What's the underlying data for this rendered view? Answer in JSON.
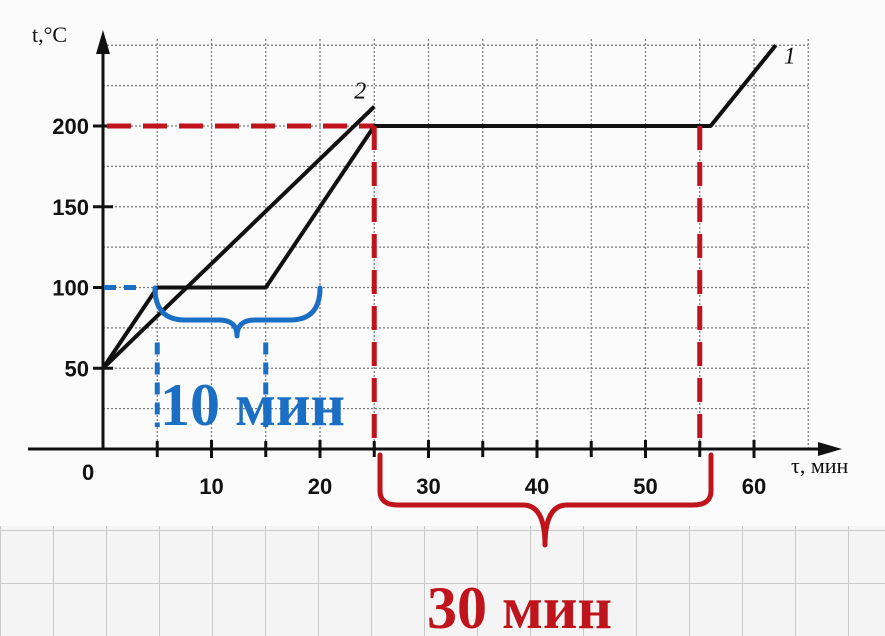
{
  "chart_data": {
    "type": "line",
    "xlabel": "τ, мин",
    "ylabel": "t,°C",
    "xlim": [
      0,
      62
    ],
    "ylim": [
      0,
      250
    ],
    "x_ticks": [
      10,
      20,
      30,
      40,
      50,
      60
    ],
    "y_ticks": [
      50,
      100,
      150,
      200
    ],
    "origin_label": "0",
    "grid": true,
    "series": [
      {
        "name": "1",
        "points": [
          [
            0,
            50
          ],
          [
            5,
            100
          ],
          [
            15,
            100
          ],
          [
            25,
            200
          ],
          [
            56,
            200
          ],
          [
            62,
            250
          ]
        ]
      },
      {
        "name": "2",
        "points": [
          [
            0,
            50
          ],
          [
            25,
            212
          ]
        ]
      }
    ],
    "annotations": [
      {
        "text": "10 мин",
        "color": "#1a6fc4",
        "from_x": 5,
        "to_x": 15,
        "level_y": 100
      },
      {
        "text": "30 мин",
        "color": "#c0141c",
        "from_x": 25,
        "to_x": 55,
        "level_y": 200
      }
    ]
  }
}
